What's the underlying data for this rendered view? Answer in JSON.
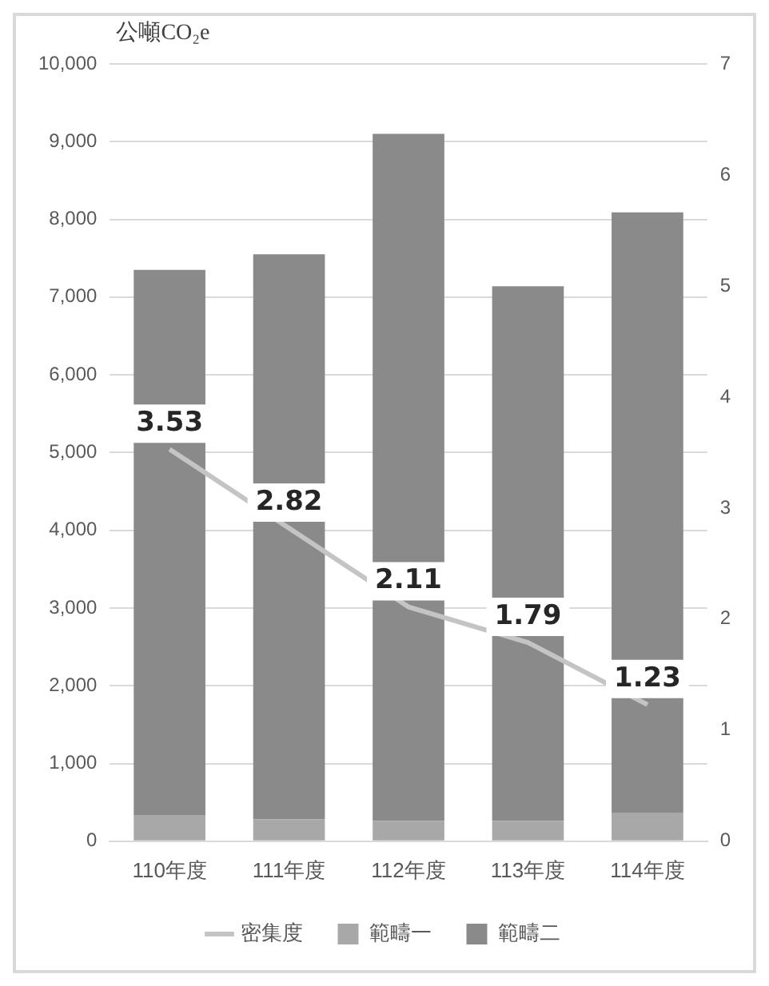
{
  "chart_data": {
    "type": "bar",
    "ylabel": "公噸CO₂e",
    "categories": [
      "110年度",
      "111年度",
      "112年度",
      "113年度",
      "114年度"
    ],
    "stacked": true,
    "series": [
      {
        "name": "範疇一",
        "color": "#a8a8a8",
        "values": [
          330,
          280,
          260,
          260,
          360
        ]
      },
      {
        "name": "範疇二",
        "color": "#8a8a8a",
        "values": [
          7020,
          7270,
          8840,
          6880,
          7730
        ]
      },
      {
        "name": "密集度",
        "type": "line",
        "axis": "y2",
        "color": "#c4c4c4",
        "values": [
          3.53,
          2.82,
          2.11,
          1.79,
          1.23
        ],
        "value_labels": [
          "3.53",
          "2.82",
          "2.11",
          "1.79",
          "1.23"
        ]
      }
    ],
    "ylim": [
      0,
      10000
    ],
    "yticks": [
      {
        "value": 0,
        "label": "0"
      },
      {
        "value": 1000,
        "label": "1,000"
      },
      {
        "value": 2000,
        "label": "2,000"
      },
      {
        "value": 3000,
        "label": "3,000"
      },
      {
        "value": 4000,
        "label": "4,000"
      },
      {
        "value": 5000,
        "label": "5,000"
      },
      {
        "value": 6000,
        "label": "6,000"
      },
      {
        "value": 7000,
        "label": "7,000"
      },
      {
        "value": 8000,
        "label": "8,000"
      },
      {
        "value": 9000,
        "label": "9,000"
      },
      {
        "value": 10000,
        "label": "10,000"
      }
    ],
    "y2lim": [
      0,
      7
    ],
    "y2ticks": [
      0,
      1,
      2,
      3,
      4,
      5,
      6,
      7
    ],
    "grid": "y",
    "legend": "bottom",
    "marker": "none",
    "line_style": "solid"
  }
}
